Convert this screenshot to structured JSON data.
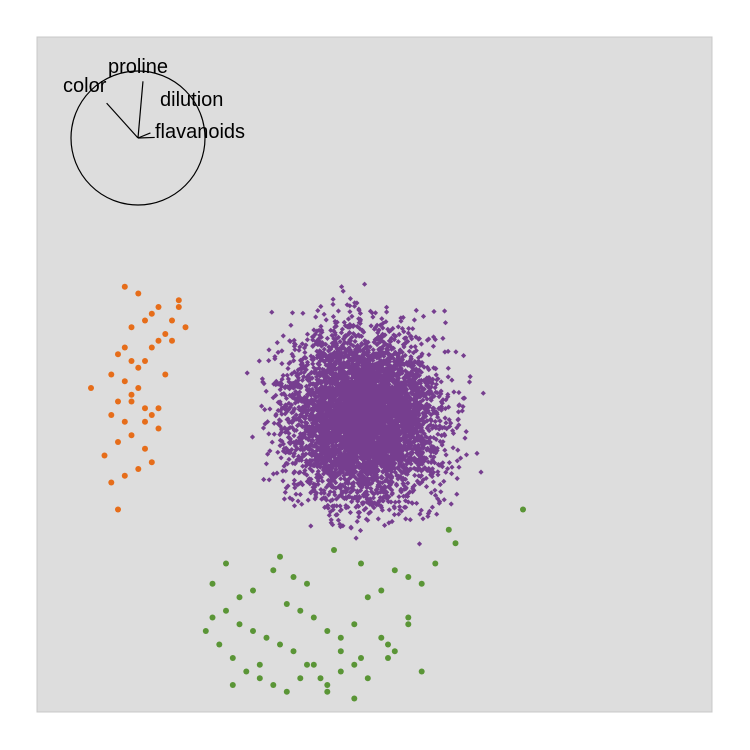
{
  "chart_data": {
    "type": "scatter",
    "title": "",
    "xlabel": "",
    "ylabel": "",
    "grid": false,
    "legend": "none",
    "axes_shown": false,
    "projection_axes": {
      "axis_labels": [
        "proline",
        "color",
        "dilution",
        "flavanoids"
      ],
      "angle_deg": [
        85,
        132,
        22,
        2
      ],
      "relative_length": [
        0.85,
        0.7,
        0.2,
        0.25
      ]
    },
    "series": [
      {
        "colour": "#763e8f",
        "marker": "diamond",
        "estimated_count": 25000,
        "center": [
          0.485,
          0.44
        ],
        "spread": [
          0.15,
          0.165
        ],
        "extent": {
          "x": [
            0.14,
            0.92
          ],
          "y": [
            0.04,
            0.8
          ]
        }
      },
      {
        "colour": "#e66d1a",
        "marker": "circle",
        "x": [
          0.18,
          0.11,
          0.13,
          0.15,
          0.16,
          0.1,
          0.12,
          0.14,
          0.17,
          0.13,
          0.11,
          0.16,
          0.12,
          0.14,
          0.15,
          0.13,
          0.11,
          0.17,
          0.16,
          0.14,
          0.12,
          0.15,
          0.13,
          0.18,
          0.19,
          0.14,
          0.16,
          0.2,
          0.17,
          0.18,
          0.21,
          0.15,
          0.13,
          0.2,
          0.22,
          0.17,
          0.19,
          0.16,
          0.14,
          0.08,
          0.21,
          0.18,
          0.12
        ],
        "y": [
          0.42,
          0.34,
          0.35,
          0.36,
          0.39,
          0.38,
          0.4,
          0.41,
          0.37,
          0.43,
          0.44,
          0.45,
          0.46,
          0.47,
          0.48,
          0.49,
          0.5,
          0.44,
          0.43,
          0.52,
          0.53,
          0.51,
          0.54,
          0.55,
          0.56,
          0.57,
          0.58,
          0.55,
          0.59,
          0.6,
          0.61,
          0.62,
          0.63,
          0.58,
          0.57,
          0.54,
          0.5,
          0.52,
          0.46,
          0.48,
          0.6,
          0.45,
          0.3
        ]
      },
      {
        "colour": "#5a9536",
        "marker": "circle",
        "x": [
          0.61,
          0.53,
          0.48,
          0.44,
          0.4,
          0.38,
          0.36,
          0.32,
          0.3,
          0.28,
          0.26,
          0.35,
          0.37,
          0.39,
          0.41,
          0.43,
          0.45,
          0.47,
          0.49,
          0.51,
          0.55,
          0.57,
          0.59,
          0.62,
          0.55,
          0.52,
          0.48,
          0.45,
          0.42,
          0.4,
          0.38,
          0.36,
          0.34,
          0.32,
          0.3,
          0.28,
          0.26,
          0.25,
          0.27,
          0.29,
          0.31,
          0.33,
          0.35,
          0.37,
          0.39,
          0.41,
          0.43,
          0.45,
          0.47,
          0.49,
          0.51,
          0.53,
          0.55,
          0.57,
          0.29,
          0.33,
          0.43,
          0.47,
          0.52,
          0.72
        ],
        "y": [
          0.27,
          0.21,
          0.22,
          0.24,
          0.19,
          0.2,
          0.23,
          0.18,
          0.17,
          0.22,
          0.19,
          0.21,
          0.16,
          0.15,
          0.14,
          0.12,
          0.11,
          0.13,
          0.17,
          0.18,
          0.2,
          0.19,
          0.22,
          0.25,
          0.14,
          0.1,
          0.08,
          0.06,
          0.05,
          0.07,
          0.09,
          0.1,
          0.11,
          0.12,
          0.13,
          0.15,
          0.14,
          0.12,
          0.1,
          0.08,
          0.06,
          0.05,
          0.04,
          0.03,
          0.05,
          0.07,
          0.04,
          0.09,
          0.07,
          0.05,
          0.11,
          0.09,
          0.13,
          0.06,
          0.04,
          0.07,
          0.03,
          0.02,
          0.08,
          0.3
        ]
      }
    ]
  }
}
